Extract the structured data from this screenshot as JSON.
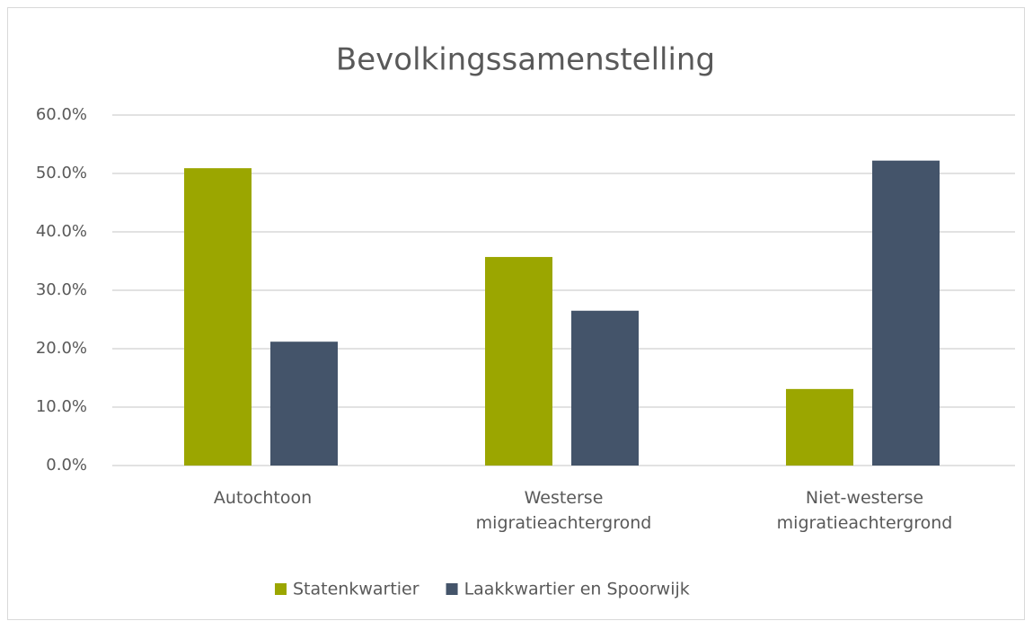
{
  "chart_data": {
    "type": "bar",
    "title": "Bevolkingssamenstelling",
    "categories": [
      "Autochtoon",
      "Westerse migratieachtergrond",
      "Niet-westerse migratieachtergrond"
    ],
    "series": [
      {
        "name": "Statenkwartier",
        "color": "#9ba600",
        "values": [
          50.9,
          35.7,
          13.1
        ]
      },
      {
        "name": "Laakkwartier en Spoorwijk",
        "color": "#44546a",
        "values": [
          21.2,
          26.5,
          52.2
        ]
      }
    ],
    "ylim": [
      0,
      60
    ],
    "yticks": [
      {
        "value": 0,
        "label": "0.0%"
      },
      {
        "value": 10,
        "label": "10.0%"
      },
      {
        "value": 20,
        "label": "20.0%"
      },
      {
        "value": 30,
        "label": "30.0%"
      },
      {
        "value": 40,
        "label": "40.0%"
      },
      {
        "value": 50,
        "label": "50.0%"
      },
      {
        "value": 60,
        "label": "60.0%"
      }
    ],
    "grid": true,
    "legend": "bottom"
  }
}
